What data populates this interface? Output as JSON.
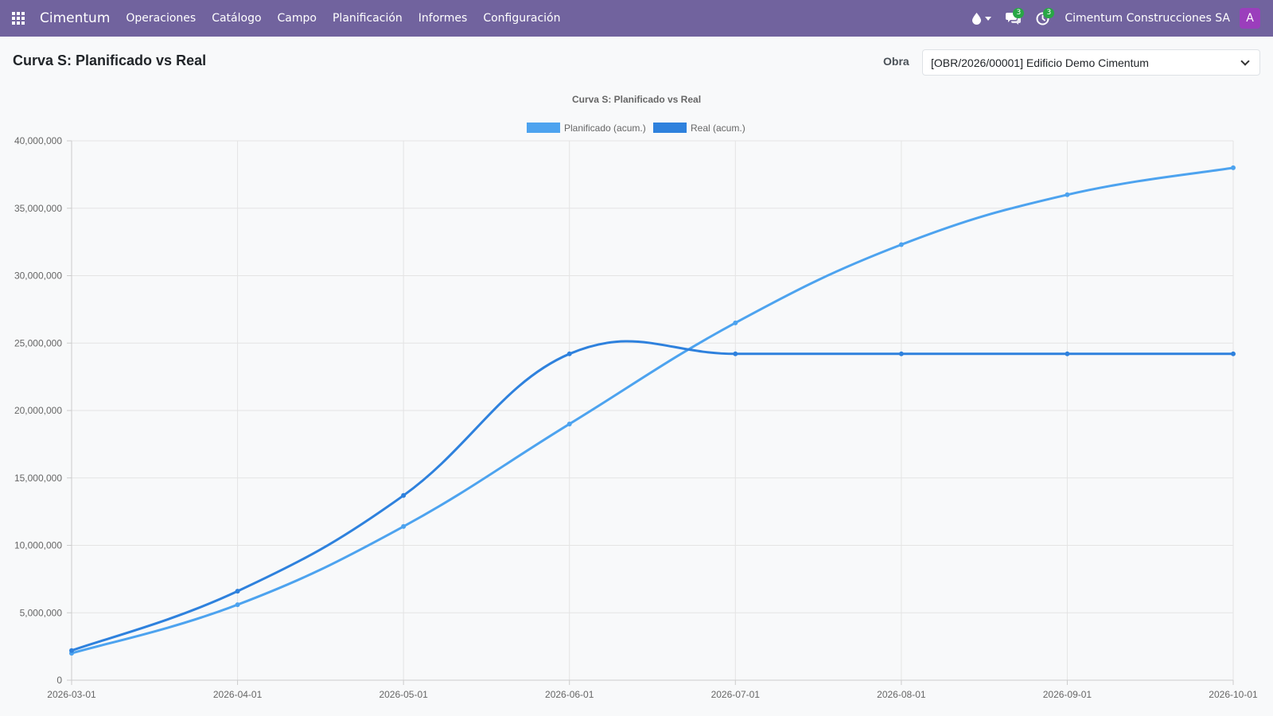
{
  "navbar": {
    "brand": "Cimentum",
    "menu": [
      "Operaciones",
      "Catálogo",
      "Campo",
      "Planificación",
      "Informes",
      "Configuración"
    ],
    "icons": [
      "apps-grid-icon",
      "drop-icon",
      "chat-icon",
      "clock-icon"
    ],
    "messages_count": "3",
    "activities_count": "3",
    "company": "Cimentum Construcciones SA",
    "avatar_letter": "A",
    "colors": {
      "navbar_bg": "#71639e",
      "badge": "#28a745",
      "avatar_bg": "#9b3ebc"
    }
  },
  "control_panel": {
    "title": "Curva S: Planificado vs Real",
    "obra_label": "Obra",
    "obra_value": "[OBR/2026/00001] Edificio Demo Cimentum"
  },
  "chart_data": {
    "type": "line",
    "title": "Curva S: Planificado vs Real",
    "xlabel": "",
    "ylabel": "",
    "x": [
      "2026-03-01",
      "2026-04-01",
      "2026-05-01",
      "2026-06-01",
      "2026-07-01",
      "2026-08-01",
      "2026-09-01",
      "2026-10-01"
    ],
    "ylim": [
      0,
      40000000
    ],
    "yticks": [
      0,
      5000000,
      10000000,
      15000000,
      20000000,
      25000000,
      30000000,
      35000000,
      40000000
    ],
    "ytick_labels": [
      "0",
      "5,000,000",
      "10,000,000",
      "15,000,000",
      "20,000,000",
      "25,000,000",
      "30,000,000",
      "35,000,000",
      "40,000,000"
    ],
    "grid": true,
    "legend_position": "top",
    "series": [
      {
        "name": "Planificado (acum.)",
        "color": "#4da3ef",
        "values": [
          2000000,
          5600000,
          11400000,
          19000000,
          26500000,
          32300000,
          36000000,
          38000000
        ]
      },
      {
        "name": "Real (acum.)",
        "color": "#2e81dd",
        "values": [
          2200000,
          6600000,
          13700000,
          24200000,
          24200000,
          24200000,
          24200000,
          24200000
        ]
      }
    ]
  }
}
